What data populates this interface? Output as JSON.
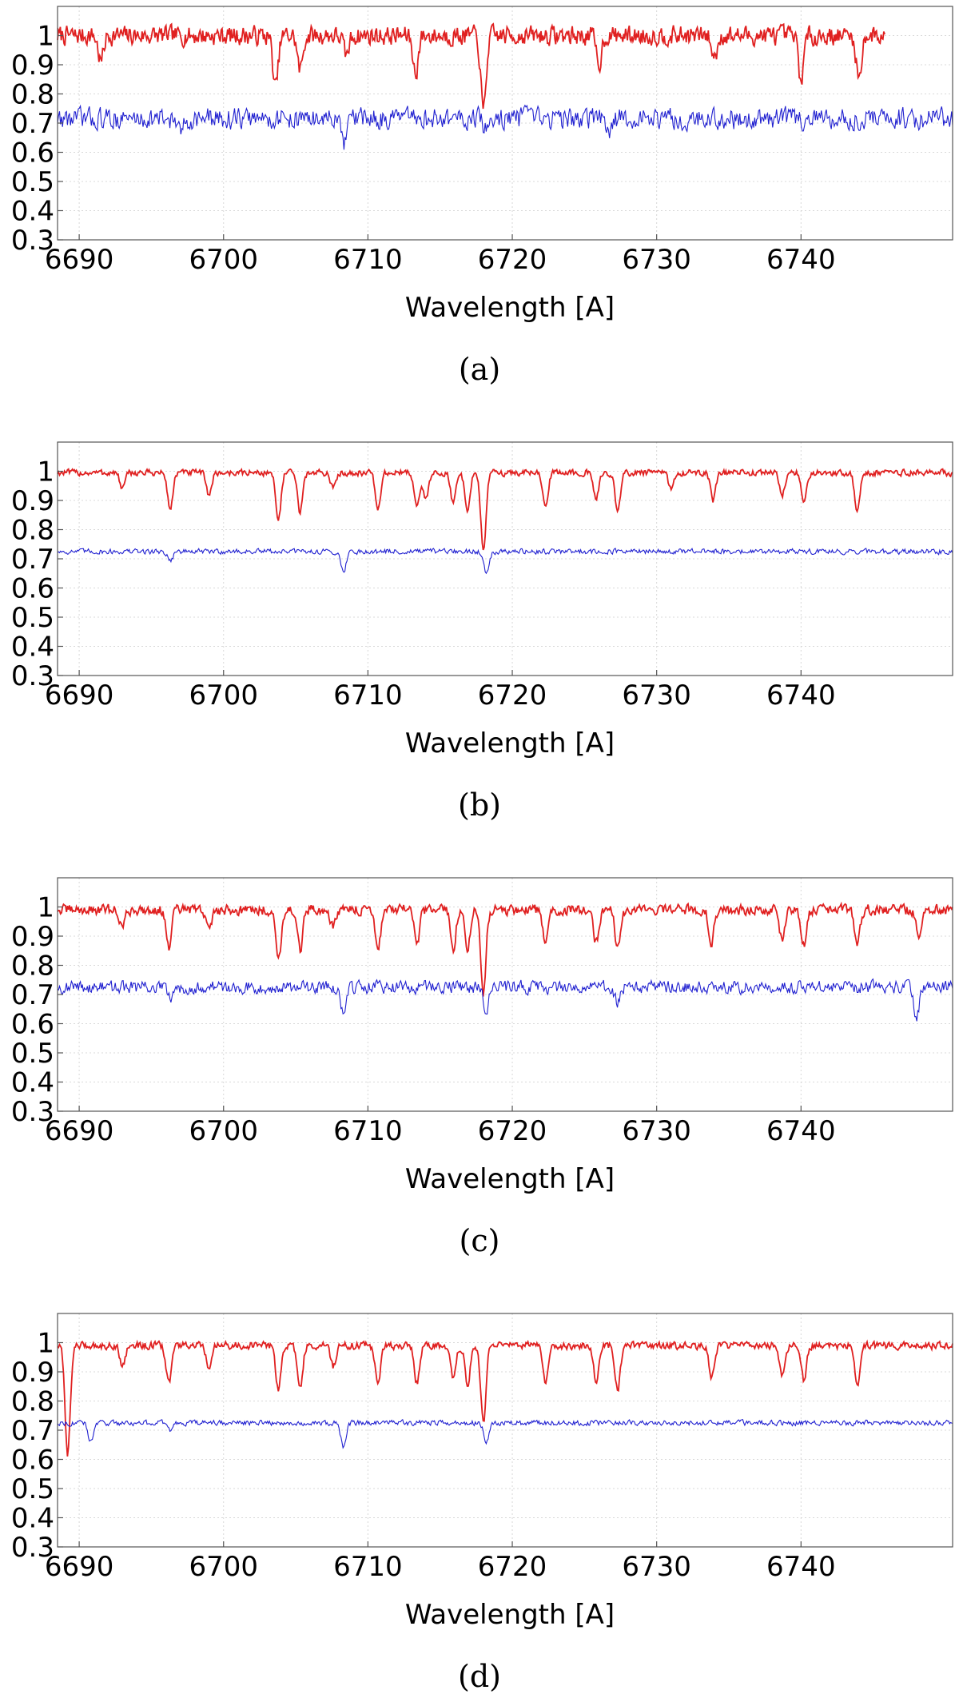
{
  "chart_data": [
    {
      "type": "line",
      "caption": "(a)",
      "xlabel": "Wavelength [A]",
      "ylabel": "",
      "xlim": [
        6688.5,
        6750.5
      ],
      "ylim": [
        0.3,
        1.1
      ],
      "xticks": [
        6690,
        6700,
        6710,
        6720,
        6730,
        6740
      ],
      "yticks": [
        0.3,
        0.4,
        0.5,
        0.6,
        0.7,
        0.8,
        0.9,
        1
      ],
      "grid": true,
      "series": [
        {
          "color": "#e02020",
          "x_range": [
            6688.5,
            6745.8
          ],
          "baseline": 1.0,
          "noise": 0.09,
          "lines": [
            [
              6703.6,
              0.82
            ],
            [
              6705.3,
              0.88
            ],
            [
              6713.3,
              0.87
            ],
            [
              6718.0,
              0.74
            ],
            [
              6726.0,
              0.9
            ],
            [
              6740.0,
              0.85
            ],
            [
              6744.0,
              0.85
            ],
            [
              6691.5,
              0.91
            ],
            [
              6708.5,
              0.93
            ],
            [
              6734.0,
              0.92
            ]
          ]
        },
        {
          "color": "#2020d0",
          "x_range": [
            6688.5,
            6750.5
          ],
          "baseline": 0.715,
          "noise": 0.1,
          "lines": [
            [
              6708.3,
              0.62
            ],
            [
              6718.2,
              0.67
            ],
            [
              6697.0,
              0.66
            ],
            [
              6726.8,
              0.66
            ]
          ]
        }
      ]
    },
    {
      "type": "line",
      "caption": "(b)",
      "xlabel": "Wavelength [A]",
      "ylabel": "",
      "xlim": [
        6688.5,
        6750.5
      ],
      "ylim": [
        0.3,
        1.1
      ],
      "xticks": [
        6690,
        6700,
        6710,
        6720,
        6730,
        6740
      ],
      "yticks": [
        0.3,
        0.4,
        0.5,
        0.6,
        0.7,
        0.8,
        0.9,
        1
      ],
      "grid": true,
      "series": [
        {
          "color": "#e02020",
          "x_range": [
            6688.5,
            6750.5
          ],
          "baseline": 0.995,
          "noise": 0.03,
          "lines": [
            [
              6693.0,
              0.94
            ],
            [
              6696.3,
              0.87
            ],
            [
              6699.0,
              0.92
            ],
            [
              6703.8,
              0.84
            ],
            [
              6705.3,
              0.86
            ],
            [
              6710.7,
              0.87
            ],
            [
              6713.4,
              0.88
            ],
            [
              6714.0,
              0.9
            ],
            [
              6715.9,
              0.89
            ],
            [
              6716.9,
              0.87
            ],
            [
              6718.0,
              0.73
            ],
            [
              6722.3,
              0.89
            ],
            [
              6725.8,
              0.9
            ],
            [
              6727.3,
              0.86
            ],
            [
              6733.9,
              0.9
            ],
            [
              6738.7,
              0.92
            ],
            [
              6740.2,
              0.89
            ],
            [
              6743.9,
              0.86
            ],
            [
              6731.0,
              0.94
            ],
            [
              6707.6,
              0.94
            ]
          ]
        },
        {
          "color": "#2020d0",
          "x_range": [
            6688.5,
            6750.5
          ],
          "baseline": 0.725,
          "noise": 0.025,
          "lines": [
            [
              6708.3,
              0.655
            ],
            [
              6718.2,
              0.655
            ],
            [
              6696.3,
              0.695
            ]
          ]
        }
      ]
    },
    {
      "type": "line",
      "caption": "(c)",
      "xlabel": "Wavelength [A]",
      "ylabel": "",
      "xlim": [
        6688.5,
        6750.5
      ],
      "ylim": [
        0.3,
        1.1
      ],
      "xticks": [
        6690,
        6700,
        6710,
        6720,
        6730,
        6740
      ],
      "yticks": [
        0.3,
        0.4,
        0.5,
        0.6,
        0.7,
        0.8,
        0.9,
        1
      ],
      "grid": true,
      "series": [
        {
          "color": "#e02020",
          "x_range": [
            6688.5,
            6750.5
          ],
          "baseline": 0.99,
          "noise": 0.05,
          "lines": [
            [
              6696.2,
              0.86
            ],
            [
              6699.0,
              0.92
            ],
            [
              6703.8,
              0.82
            ],
            [
              6705.3,
              0.85
            ],
            [
              6710.7,
              0.86
            ],
            [
              6713.4,
              0.86
            ],
            [
              6715.9,
              0.86
            ],
            [
              6716.9,
              0.86
            ],
            [
              6718.0,
              0.71
            ],
            [
              6722.3,
              0.87
            ],
            [
              6725.8,
              0.88
            ],
            [
              6727.3,
              0.85
            ],
            [
              6733.8,
              0.88
            ],
            [
              6738.7,
              0.88
            ],
            [
              6740.2,
              0.87
            ],
            [
              6743.9,
              0.86
            ],
            [
              6748.2,
              0.88
            ],
            [
              6693.0,
              0.93
            ],
            [
              6707.6,
              0.93
            ]
          ]
        },
        {
          "color": "#2020d0",
          "x_range": [
            6688.5,
            6750.5
          ],
          "baseline": 0.725,
          "noise": 0.06,
          "lines": [
            [
              6708.3,
              0.64
            ],
            [
              6718.2,
              0.65
            ],
            [
              6696.3,
              0.68
            ],
            [
              6727.3,
              0.67
            ],
            [
              6748.0,
              0.62
            ]
          ]
        }
      ]
    },
    {
      "type": "line",
      "caption": "(d)",
      "xlabel": "Wavelength [A]",
      "ylabel": "",
      "xlim": [
        6688.5,
        6750.5
      ],
      "ylim": [
        0.3,
        1.1
      ],
      "xticks": [
        6690,
        6700,
        6710,
        6720,
        6730,
        6740
      ],
      "yticks": [
        0.3,
        0.4,
        0.5,
        0.6,
        0.7,
        0.8,
        0.9,
        1
      ],
      "grid": true,
      "series": [
        {
          "color": "#e02020",
          "x_range": [
            6688.5,
            6750.5
          ],
          "baseline": 0.99,
          "noise": 0.035,
          "lines": [
            [
              6689.2,
              0.62
            ],
            [
              6696.2,
              0.86
            ],
            [
              6699.0,
              0.9
            ],
            [
              6703.8,
              0.84
            ],
            [
              6705.3,
              0.84
            ],
            [
              6710.7,
              0.86
            ],
            [
              6713.4,
              0.86
            ],
            [
              6715.9,
              0.88
            ],
            [
              6716.9,
              0.86
            ],
            [
              6718.0,
              0.73
            ],
            [
              6722.3,
              0.87
            ],
            [
              6725.8,
              0.87
            ],
            [
              6727.3,
              0.84
            ],
            [
              6733.8,
              0.88
            ],
            [
              6738.7,
              0.89
            ],
            [
              6740.2,
              0.87
            ],
            [
              6743.9,
              0.86
            ],
            [
              6693.0,
              0.92
            ],
            [
              6707.6,
              0.92
            ]
          ]
        },
        {
          "color": "#2020d0",
          "x_range": [
            6688.5,
            6750.5
          ],
          "baseline": 0.725,
          "noise": 0.025,
          "lines": [
            [
              6708.3,
              0.645
            ],
            [
              6718.2,
              0.66
            ],
            [
              6690.8,
              0.66
            ],
            [
              6696.3,
              0.7
            ]
          ]
        }
      ]
    }
  ]
}
